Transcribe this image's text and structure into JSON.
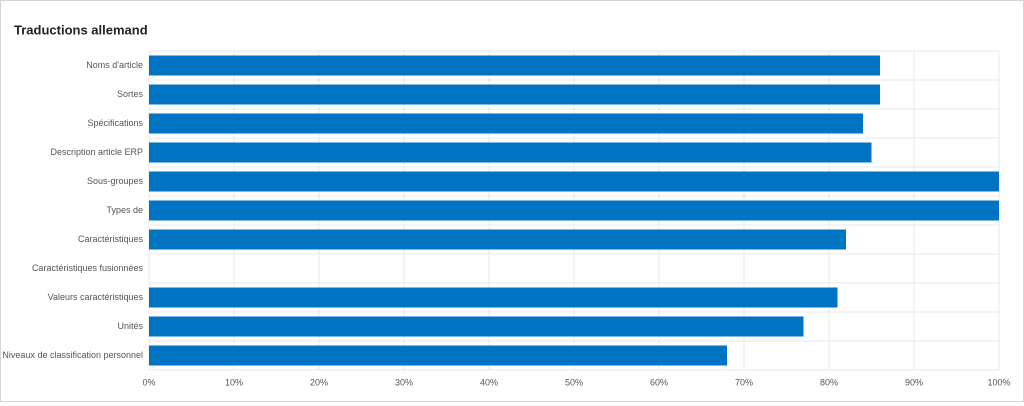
{
  "chart_data": {
    "type": "bar",
    "orientation": "horizontal",
    "title": "Traductions allemand",
    "categories": [
      "Noms d'article",
      "Sortes",
      "Spécifications",
      "Description article ERP",
      "Sous-groupes",
      "Types de",
      "Caractéristiques",
      "Caractéristiques fusionnées",
      "Valeurs caractéristiques",
      "Unités",
      "Niveaux de classification personnel"
    ],
    "values": [
      86,
      86,
      84,
      85,
      100,
      100,
      82,
      null,
      81,
      77,
      68
    ],
    "color": "#0073c2",
    "xlim": [
      0,
      100
    ],
    "xticks": [
      {
        "value": 0,
        "label": "0%"
      },
      {
        "value": 10,
        "label": "10%"
      },
      {
        "value": 20,
        "label": "20%"
      },
      {
        "value": 30,
        "label": "30%"
      },
      {
        "value": 40,
        "label": "40%"
      },
      {
        "value": 50,
        "label": "50%"
      },
      {
        "value": 60,
        "label": "60%"
      },
      {
        "value": 70,
        "label": "70%"
      },
      {
        "value": 80,
        "label": "80%"
      },
      {
        "value": 90,
        "label": "90%"
      },
      {
        "value": 100,
        "label": "100%"
      }
    ],
    "grid": true
  }
}
